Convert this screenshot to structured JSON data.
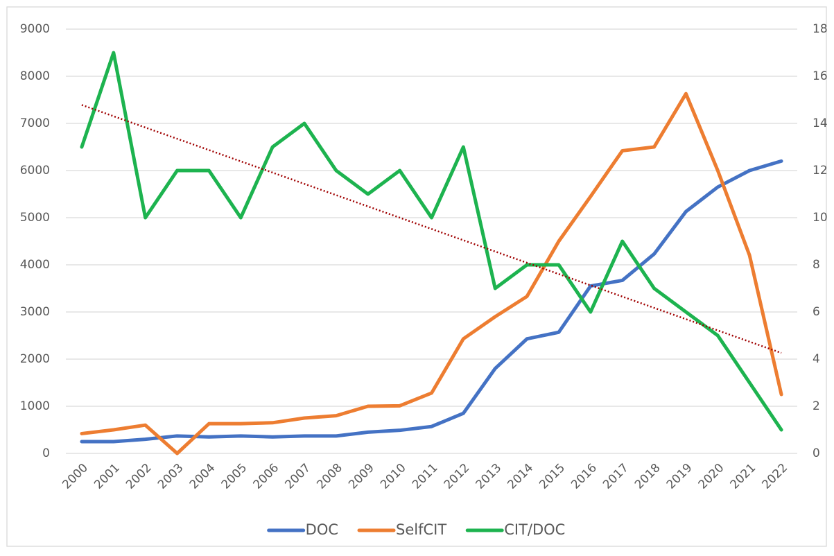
{
  "chart_data": {
    "type": "line",
    "categories": [
      "2000",
      "2001",
      "2002",
      "2003",
      "2004",
      "2005",
      "2006",
      "2007",
      "2008",
      "2009",
      "2010",
      "2011",
      "2012",
      "2013",
      "2014",
      "2015",
      "2016",
      "2017",
      "2018",
      "2019",
      "2020",
      "2021",
      "2022"
    ],
    "series": [
      {
        "name": "DOC",
        "color": "#4472c4",
        "values": [
          250,
          250,
          300,
          370,
          350,
          370,
          350,
          370,
          370,
          450,
          490,
          570,
          850,
          1800,
          2430,
          2570,
          3550,
          3670,
          4230,
          5130,
          5650,
          6000,
          6200
        ]
      },
      {
        "name": "SelfCIT",
        "color": "#ed7d31",
        "values": [
          420,
          500,
          600,
          0,
          630,
          630,
          650,
          750,
          800,
          1000,
          1010,
          1280,
          2430,
          2900,
          3330,
          4500,
          5450,
          6420,
          6500,
          7630,
          6000,
          4200,
          1250
        ]
      },
      {
        "name": "CIT/DOC",
        "color": "#1db34f",
        "axis": "y2",
        "values": [
          13,
          17,
          10,
          12,
          12,
          10,
          13,
          14,
          12,
          11,
          12,
          10,
          13,
          7,
          8,
          8,
          6,
          9,
          7,
          6,
          5,
          3,
          1
        ]
      }
    ],
    "ylim": [
      0,
      9000
    ],
    "yticks": [
      0,
      1000,
      2000,
      3000,
      4000,
      5000,
      6000,
      7000,
      8000,
      9000
    ],
    "y2lim": [
      0,
      18
    ],
    "y2ticks": [
      0,
      2,
      4,
      6,
      8,
      10,
      12,
      14,
      16,
      18
    ],
    "grid": true,
    "legend": "bottom",
    "trendline": {
      "of": "CIT/DOC",
      "kind": "linear",
      "color": "#a00000",
      "style": "dotted"
    }
  }
}
